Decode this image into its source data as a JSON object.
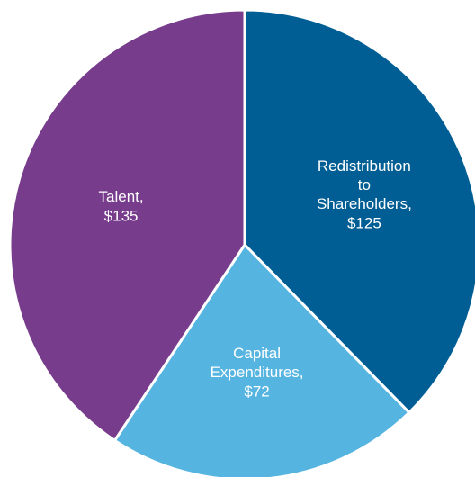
{
  "chart_data": {
    "type": "pie",
    "categories": [
      "Redistribution to Shareholders,",
      "Capital Expenditures,",
      "Talent,"
    ],
    "values": [
      125,
      72,
      135
    ],
    "value_labels": [
      "$125",
      "$72",
      "$135"
    ],
    "colors": [
      "#005e94",
      "#56b4e0",
      "#783c8c"
    ]
  }
}
